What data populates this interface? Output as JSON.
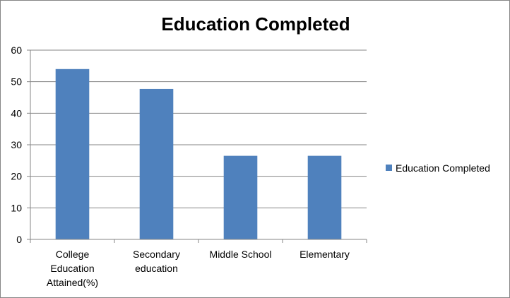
{
  "chart_data": {
    "type": "bar",
    "title": "Education Completed",
    "categories": [
      "College Education Attained(%)",
      "Secondary education",
      "Middle School",
      "Elementary"
    ],
    "category_lines": [
      [
        "College",
        "Education",
        "Attained(%)"
      ],
      [
        "Secondary",
        "education"
      ],
      [
        "Middle School"
      ],
      [
        "Elementary"
      ]
    ],
    "series": [
      {
        "name": "Education Completed",
        "values": [
          54,
          47.7,
          26.5,
          26.5
        ],
        "color": "#4f81bd"
      }
    ],
    "ylim": [
      0,
      60
    ],
    "yticks": [
      0,
      10,
      20,
      30,
      40,
      50,
      60
    ],
    "grid": true,
    "legend": "right",
    "gridline_color": "#868686"
  }
}
